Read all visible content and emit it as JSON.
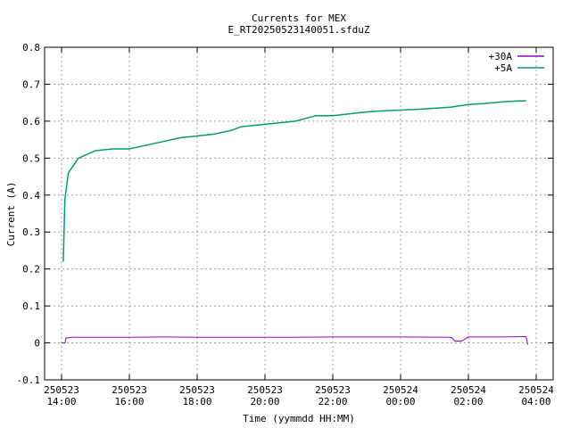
{
  "chart_data": {
    "type": "line",
    "title": "Currents for MEX",
    "subtitle": "E_RT20250523140051.sfduZ",
    "xlabel": "Time (yymmdd HH:MM)",
    "ylabel": "Current (A)",
    "ylim": [
      -0.1,
      0.8
    ],
    "y_ticks": [
      "-0.1",
      "0",
      "0.1",
      "0.2",
      "0.3",
      "0.4",
      "0.5",
      "0.6",
      "0.7",
      "0.8"
    ],
    "x_ticks": [
      {
        "date": "250523",
        "time": "14:00",
        "hour": 14
      },
      {
        "date": "250523",
        "time": "16:00",
        "hour": 16
      },
      {
        "date": "250523",
        "time": "18:00",
        "hour": 18
      },
      {
        "date": "250523",
        "time": "20:00",
        "hour": 20
      },
      {
        "date": "250523",
        "time": "22:00",
        "hour": 22
      },
      {
        "date": "250524",
        "time": "00:00",
        "hour": 24
      },
      {
        "date": "250524",
        "time": "02:00",
        "hour": 26
      },
      {
        "date": "250524",
        "time": "04:00",
        "hour": 28
      }
    ],
    "grid": true,
    "legend_position": "top-right",
    "series": [
      {
        "name": "+30A",
        "color": "#9400d3",
        "x": [
          14.0,
          14.1,
          14.13,
          14.3,
          15.0,
          16.0,
          17.0,
          18.0,
          19.0,
          19.3,
          20.9,
          22.0,
          24.0,
          25.5,
          25.6,
          25.8,
          26.0,
          27.0,
          27.7,
          27.75
        ],
        "y": [
          0.0,
          0.0,
          0.013,
          0.015,
          0.015,
          0.015,
          0.016,
          0.015,
          0.015,
          0.015,
          0.015,
          0.016,
          0.016,
          0.015,
          0.005,
          0.005,
          0.016,
          0.016,
          0.017,
          -0.005
        ]
      },
      {
        "name": "+5A",
        "color": "#009e73",
        "x": [
          14.05,
          14.1,
          14.13,
          14.2,
          14.35,
          14.5,
          14.75,
          15.0,
          15.5,
          16.0,
          16.5,
          17.0,
          17.5,
          18.0,
          18.5,
          19.0,
          19.3,
          20.9,
          21.5,
          22.0,
          22.5,
          23.0,
          23.5,
          24.0,
          24.5,
          25.0,
          25.5,
          26.0,
          26.5,
          27.0,
          27.5,
          27.7
        ],
        "y": [
          0.22,
          0.39,
          0.41,
          0.46,
          0.48,
          0.5,
          0.51,
          0.52,
          0.525,
          0.525,
          0.535,
          0.545,
          0.555,
          0.56,
          0.565,
          0.575,
          0.585,
          0.6,
          0.615,
          0.615,
          0.62,
          0.625,
          0.628,
          0.63,
          0.632,
          0.635,
          0.638,
          0.645,
          0.648,
          0.652,
          0.655,
          0.655
        ]
      }
    ]
  }
}
